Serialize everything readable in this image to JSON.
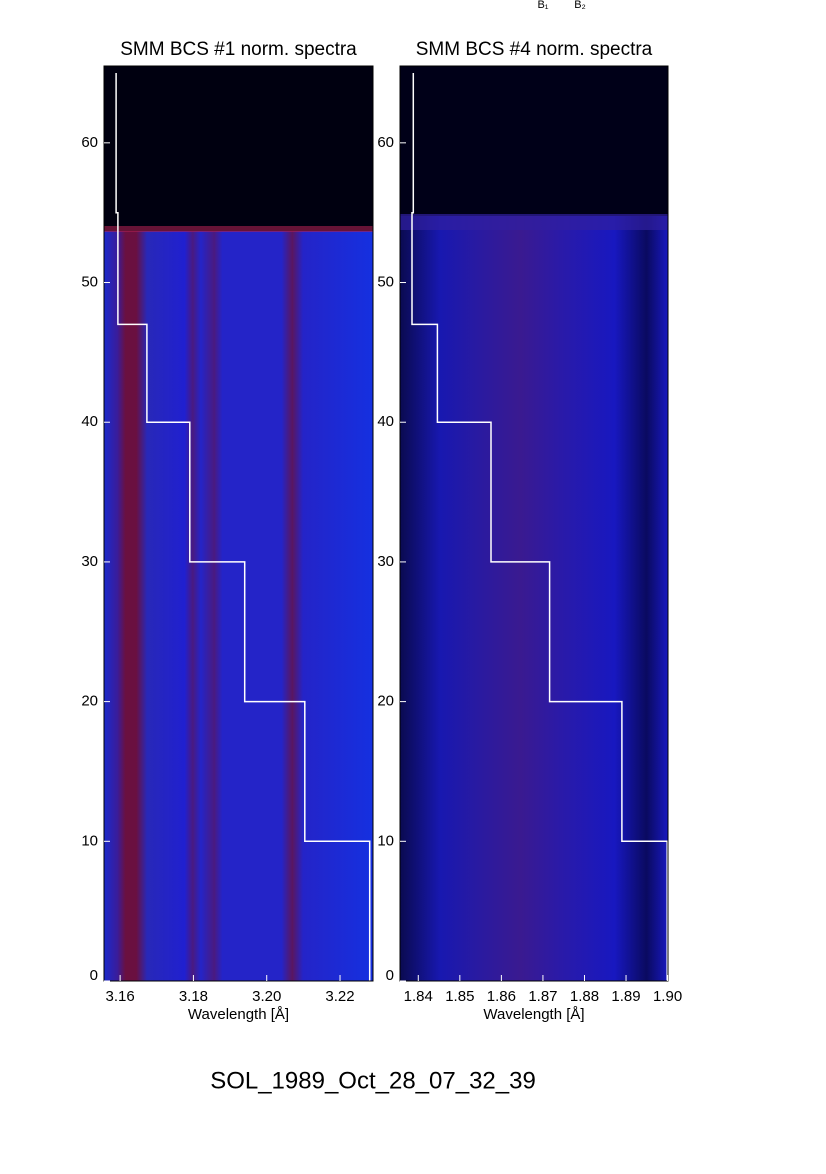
{
  "annotations": [
    "B₁",
    "B₂"
  ],
  "footer": "SOL_1989_Oct_28_07_32_39",
  "chart_data": [
    {
      "type": "line",
      "title": "SMM BCS #1 norm. spectra",
      "xlabel": "Wavelength [Å]",
      "x": [
        3.1589,
        3.1589,
        3.1594,
        3.1673,
        3.179,
        3.194,
        3.2104,
        3.2281
      ],
      "series": [
        {
          "color": "#ffffff",
          "values": [
            65,
            55,
            47,
            40,
            30,
            20,
            10,
            0
          ]
        }
      ],
      "xlim": [
        3.1556,
        3.229
      ],
      "xticks": [
        3.16,
        3.18,
        {
          "value": 3.2,
          "label": "3.20"
        },
        3.22
      ],
      "ylim": [
        0,
        65.5
      ],
      "yticks": [
        0,
        10,
        20,
        30,
        40,
        50,
        60
      ]
    },
    {
      "type": "line",
      "title": "SMM BCS #4 norm. spectra",
      "xlabel": "Wavelength [Å]",
      "x": [
        1.8388,
        1.8388,
        1.8385,
        1.8446,
        1.8575,
        1.8716,
        1.889,
        1.8999
      ],
      "series": [
        {
          "color": "#ffffff",
          "values": [
            65,
            55,
            47,
            40,
            30,
            20,
            10,
            0
          ]
        }
      ],
      "xlim": [
        1.8356,
        1.9001
      ],
      "xticks": [
        1.84,
        1.85,
        1.86,
        1.87,
        1.88,
        1.89,
        {
          "value": 1.9,
          "label": "1.90"
        }
      ],
      "ylim": [
        0,
        65.5
      ],
      "yticks": [
        0,
        10,
        20,
        30,
        40,
        50,
        60
      ]
    }
  ]
}
